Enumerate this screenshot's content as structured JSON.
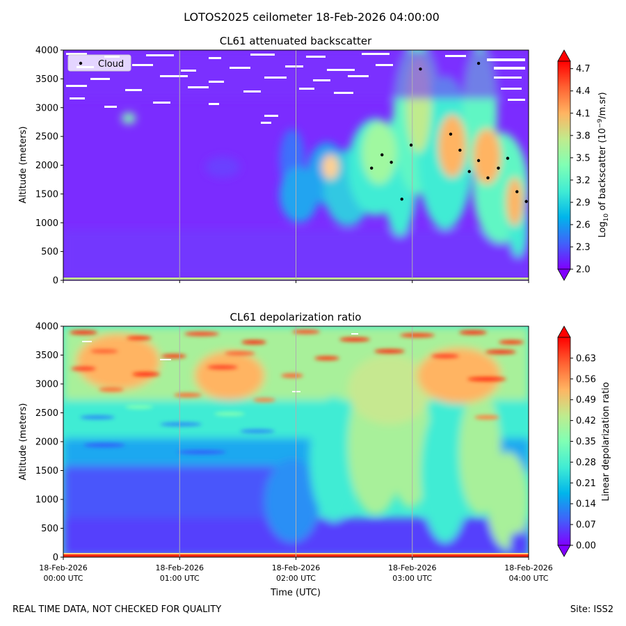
{
  "figure": {
    "suptitle": "LOTOS2025 ceilometer 18-Feb-2026 04:00:00",
    "footer_left": "REAL TIME DATA, NOT CHECKED FOR QUALITY",
    "footer_right": "Site: ISS2"
  },
  "chart_data": [
    {
      "type": "heatmap",
      "title": "CL61 attenuated backscatter",
      "ylabel": "Altitude (meters)",
      "xlabel": "",
      "x_ticks": [
        "18-Feb-2026\n00:00 UTC",
        "18-Feb-2026\n01:00 UTC",
        "18-Feb-2026\n02:00 UTC",
        "18-Feb-2026\n03:00 UTC",
        "18-Feb-2026\n04:00 UTC"
      ],
      "x_range_hours": [
        0,
        4
      ],
      "ylim": [
        0,
        4000
      ],
      "y_ticks": [
        0,
        500,
        1000,
        1500,
        2000,
        2500,
        3000,
        3500,
        4000
      ],
      "colorbar": {
        "label": "Log10 of backscatter (10^-9/m.sr)",
        "label_main": "Log",
        "label_sub": "10",
        "label_mid": " of backscatter (10",
        "label_sup": "−9",
        "label_end": "/m.sr)",
        "range": [
          2.0,
          4.8
        ],
        "ticks": [
          "2.0",
          "2.3",
          "2.6",
          "2.9",
          "3.2",
          "3.5",
          "3.8",
          "4.1",
          "4.4",
          "4.7"
        ],
        "extend": "both",
        "colormap": "rainbow"
      },
      "legend": {
        "label": "Cloud",
        "location": "upper left"
      },
      "cloud_points": [
        {
          "t": 2.65,
          "alt": 1950
        },
        {
          "t": 2.74,
          "alt": 2180
        },
        {
          "t": 2.82,
          "alt": 2050
        },
        {
          "t": 2.91,
          "alt": 1410
        },
        {
          "t": 2.99,
          "alt": 2350
        },
        {
          "t": 3.07,
          "alt": 3670
        },
        {
          "t": 3.33,
          "alt": 2540
        },
        {
          "t": 3.41,
          "alt": 2260
        },
        {
          "t": 3.49,
          "alt": 1890
        },
        {
          "t": 3.57,
          "alt": 2080
        },
        {
          "t": 3.57,
          "alt": 3770
        },
        {
          "t": 3.65,
          "alt": 1780
        },
        {
          "t": 3.74,
          "alt": 1950
        },
        {
          "t": 3.82,
          "alt": 2120
        },
        {
          "t": 3.9,
          "alt": 1540
        },
        {
          "t": 3.98,
          "alt": 1370
        }
      ]
    },
    {
      "type": "heatmap",
      "title": "CL61 depolarization ratio",
      "ylabel": "Altitude (meters)",
      "xlabel": "Time (UTC)",
      "x_ticks": [
        "18-Feb-2026\n00:00 UTC",
        "18-Feb-2026\n01:00 UTC",
        "18-Feb-2026\n02:00 UTC",
        "18-Feb-2026\n03:00 UTC",
        "18-Feb-2026\n04:00 UTC"
      ],
      "x_range_hours": [
        0,
        4
      ],
      "ylim": [
        0,
        4000
      ],
      "y_ticks": [
        0,
        500,
        1000,
        1500,
        2000,
        2500,
        3000,
        3500,
        4000
      ],
      "colorbar": {
        "label": "Linear depolarization ratio",
        "range": [
          0.0,
          0.7
        ],
        "ticks": [
          "0.00",
          "0.07",
          "0.14",
          "0.21",
          "0.28",
          "0.35",
          "0.42",
          "0.49",
          "0.56",
          "0.63"
        ],
        "extend": "both",
        "colormap": "rainbow"
      }
    }
  ]
}
